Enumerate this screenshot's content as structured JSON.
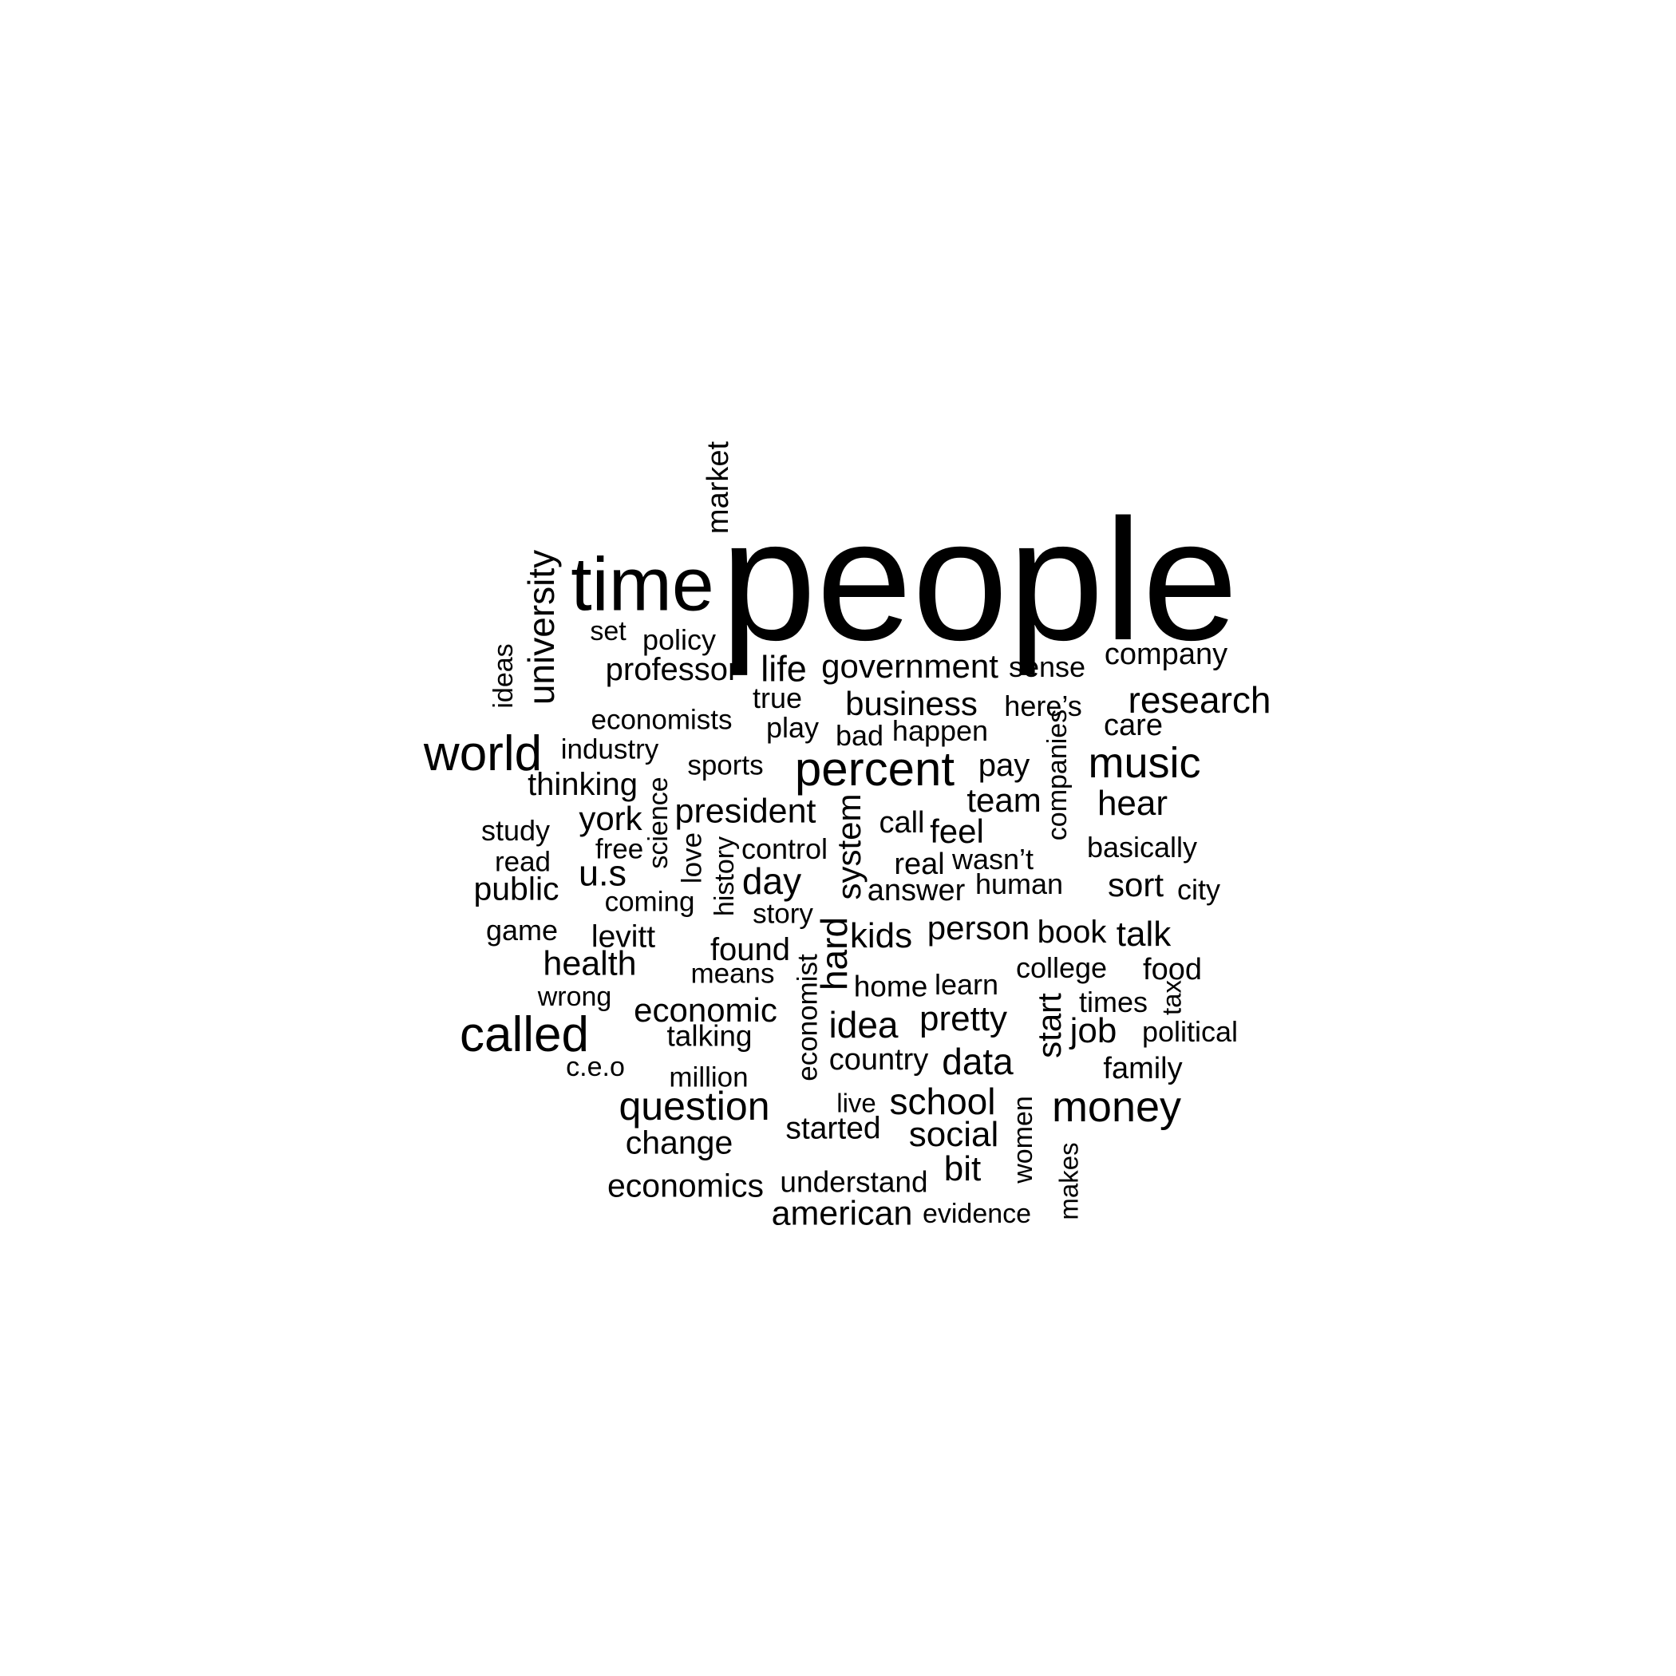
{
  "words": [
    {
      "text": "people"
    },
    {
      "text": "time"
    },
    {
      "text": "market"
    },
    {
      "text": "university"
    },
    {
      "text": "ideas"
    },
    {
      "text": "set"
    },
    {
      "text": "policy"
    },
    {
      "text": "professor"
    },
    {
      "text": "life"
    },
    {
      "text": "government"
    },
    {
      "text": "sense"
    },
    {
      "text": "company"
    },
    {
      "text": "true"
    },
    {
      "text": "economists"
    },
    {
      "text": "business"
    },
    {
      "text": "here’s"
    },
    {
      "text": "research"
    },
    {
      "text": "care"
    },
    {
      "text": "play"
    },
    {
      "text": "bad"
    },
    {
      "text": "happen"
    },
    {
      "text": "world"
    },
    {
      "text": "industry"
    },
    {
      "text": "companies"
    },
    {
      "text": "music"
    },
    {
      "text": "sports"
    },
    {
      "text": "percent"
    },
    {
      "text": "pay"
    },
    {
      "text": "thinking"
    },
    {
      "text": "science"
    },
    {
      "text": "team"
    },
    {
      "text": "hear"
    },
    {
      "text": "president"
    },
    {
      "text": "york"
    },
    {
      "text": "system"
    },
    {
      "text": "call"
    },
    {
      "text": "feel"
    },
    {
      "text": "study"
    },
    {
      "text": "free"
    },
    {
      "text": "love"
    },
    {
      "text": "history"
    },
    {
      "text": "control"
    },
    {
      "text": "basically"
    },
    {
      "text": "read"
    },
    {
      "text": "u.s"
    },
    {
      "text": "real"
    },
    {
      "text": "wasn’t"
    },
    {
      "text": "day"
    },
    {
      "text": "public"
    },
    {
      "text": "answer"
    },
    {
      "text": "human"
    },
    {
      "text": "sort"
    },
    {
      "text": "city"
    },
    {
      "text": "coming"
    },
    {
      "text": "story"
    },
    {
      "text": "game"
    },
    {
      "text": "levitt"
    },
    {
      "text": "hard"
    },
    {
      "text": "kids"
    },
    {
      "text": "person"
    },
    {
      "text": "book"
    },
    {
      "text": "talk"
    },
    {
      "text": "found"
    },
    {
      "text": "health"
    },
    {
      "text": "means"
    },
    {
      "text": "economist"
    },
    {
      "text": "college"
    },
    {
      "text": "food"
    },
    {
      "text": "home"
    },
    {
      "text": "learn"
    },
    {
      "text": "wrong"
    },
    {
      "text": "tax"
    },
    {
      "text": "times"
    },
    {
      "text": "economic"
    },
    {
      "text": "start"
    },
    {
      "text": "pretty"
    },
    {
      "text": "called"
    },
    {
      "text": "idea"
    },
    {
      "text": "job"
    },
    {
      "text": "political"
    },
    {
      "text": "talking"
    },
    {
      "text": "country"
    },
    {
      "text": "data"
    },
    {
      "text": "c.e.o"
    },
    {
      "text": "family"
    },
    {
      "text": "million"
    },
    {
      "text": "women"
    },
    {
      "text": "live"
    },
    {
      "text": "school"
    },
    {
      "text": "question"
    },
    {
      "text": "money"
    },
    {
      "text": "started"
    },
    {
      "text": "social"
    },
    {
      "text": "change"
    },
    {
      "text": "makes"
    },
    {
      "text": "bit"
    },
    {
      "text": "economics"
    },
    {
      "text": "understand"
    },
    {
      "text": "evidence"
    },
    {
      "text": "american"
    }
  ]
}
